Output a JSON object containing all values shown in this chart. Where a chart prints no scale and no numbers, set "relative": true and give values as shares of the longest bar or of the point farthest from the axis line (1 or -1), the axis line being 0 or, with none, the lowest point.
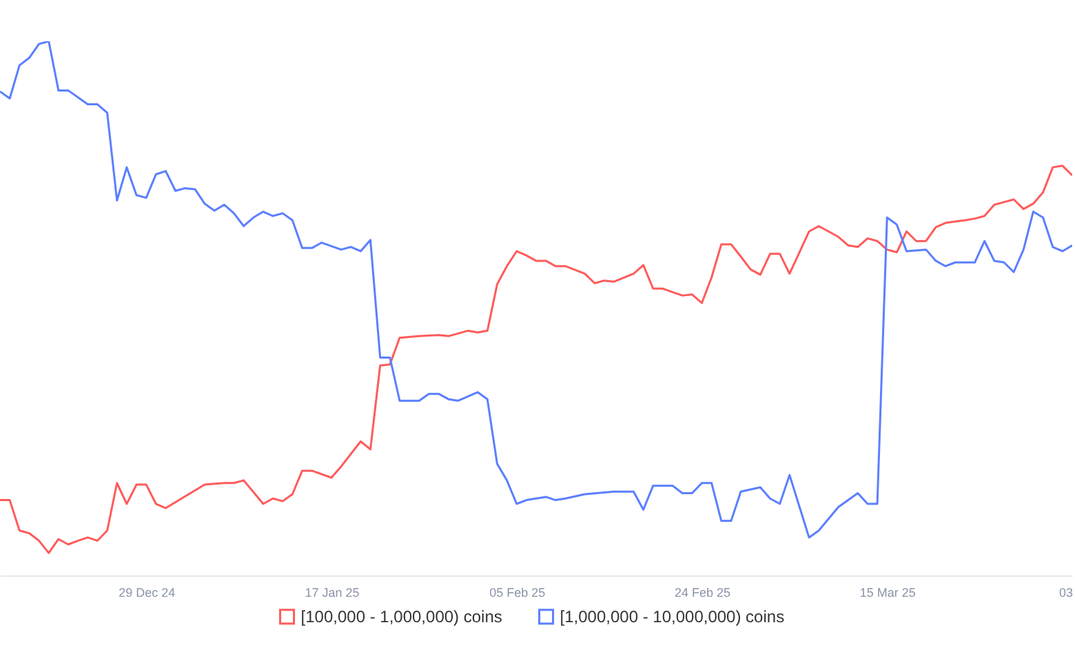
{
  "chart_data": {
    "type": "line",
    "relative": true,
    "legend": "bottom",
    "xlim": [
      "2024-12-14",
      "2025-04-03"
    ],
    "xticks": [
      {
        "value": "2024-12-29",
        "label": "29 Dec 24"
      },
      {
        "value": "2025-01-17",
        "label": "17 Jan 25"
      },
      {
        "value": "2025-02-05",
        "label": "05 Feb 25"
      },
      {
        "value": "2025-02-24",
        "label": "24 Feb 25"
      },
      {
        "value": "2025-03-15",
        "label": "15 Mar 25"
      },
      {
        "value": "2025-04-03",
        "label": "03"
      }
    ],
    "series": [
      {
        "name": "[100,000  - 1,000,000) coins",
        "color": "#ff5b5b",
        "x": [
          "2024-12-14",
          "2024-12-15",
          "2024-12-16",
          "2024-12-17",
          "2024-12-18",
          "2024-12-19",
          "2024-12-20",
          "2024-12-21",
          "2024-12-22",
          "2024-12-23",
          "2024-12-24",
          "2024-12-25",
          "2024-12-26",
          "2024-12-27",
          "2024-12-28",
          "2024-12-29",
          "2024-12-30",
          "2024-12-31",
          "2025-01-04",
          "2025-01-06",
          "2025-01-07",
          "2025-01-08",
          "2025-01-10",
          "2025-01-11",
          "2025-01-12",
          "2025-01-13",
          "2025-01-14",
          "2025-01-15",
          "2025-01-17",
          "2025-01-18",
          "2025-01-20",
          "2025-01-21",
          "2025-01-22",
          "2025-01-23",
          "2025-01-24",
          "2025-01-26",
          "2025-01-28",
          "2025-01-29",
          "2025-01-31",
          "2025-02-01",
          "2025-02-02",
          "2025-02-03",
          "2025-02-04",
          "2025-02-05",
          "2025-02-06",
          "2025-02-07",
          "2025-02-08",
          "2025-02-09",
          "2025-02-10",
          "2025-02-12",
          "2025-02-13",
          "2025-02-14",
          "2025-02-15",
          "2025-02-17",
          "2025-02-18",
          "2025-02-19",
          "2025-02-20",
          "2025-02-22",
          "2025-02-23",
          "2025-02-24",
          "2025-02-25",
          "2025-02-26",
          "2025-02-27",
          "2025-02-28",
          "2025-03-01",
          "2025-03-02",
          "2025-03-03",
          "2025-03-04",
          "2025-03-05",
          "2025-03-07",
          "2025-03-08",
          "2025-03-10",
          "2025-03-11",
          "2025-03-12",
          "2025-03-13",
          "2025-03-14",
          "2025-03-15",
          "2025-03-16",
          "2025-03-17",
          "2025-03-18",
          "2025-03-19",
          "2025-03-20",
          "2025-03-21",
          "2025-03-23",
          "2025-03-24",
          "2025-03-25",
          "2025-03-26",
          "2025-03-27",
          "2025-03-28",
          "2025-03-29",
          "2025-03-30",
          "2025-03-31",
          "2025-04-01",
          "2025-04-02",
          "2025-04-03"
        ],
        "values": [
          0.141,
          0.141,
          0.084,
          0.079,
          0.065,
          0.042,
          0.068,
          0.058,
          0.065,
          0.071,
          0.065,
          0.084,
          0.173,
          0.134,
          0.17,
          0.17,
          0.134,
          0.126,
          0.17,
          0.173,
          0.173,
          0.178,
          0.134,
          0.144,
          0.139,
          0.152,
          0.196,
          0.196,
          0.183,
          0.204,
          0.251,
          0.236,
          0.393,
          0.395,
          0.445,
          0.448,
          0.45,
          0.448,
          0.458,
          0.455,
          0.458,
          0.545,
          0.579,
          0.607,
          0.599,
          0.589,
          0.589,
          0.579,
          0.579,
          0.565,
          0.547,
          0.552,
          0.55,
          0.565,
          0.581,
          0.537,
          0.537,
          0.524,
          0.526,
          0.51,
          0.558,
          0.62,
          0.62,
          0.597,
          0.573,
          0.563,
          0.602,
          0.602,
          0.565,
          0.644,
          0.654,
          0.634,
          0.618,
          0.615,
          0.631,
          0.626,
          0.61,
          0.605,
          0.644,
          0.626,
          0.626,
          0.652,
          0.66,
          0.665,
          0.668,
          0.673,
          0.694,
          0.699,
          0.704,
          0.686,
          0.696,
          0.717,
          0.764,
          0.767,
          0.749
        ]
      },
      {
        "name": "[1,000,000 - 10,000,000) coins",
        "color": "#5b7fff",
        "x": [
          "2024-12-14",
          "2024-12-15",
          "2024-12-16",
          "2024-12-17",
          "2024-12-18",
          "2024-12-19",
          "2024-12-20",
          "2024-12-21",
          "2024-12-23",
          "2024-12-24",
          "2024-12-25",
          "2024-12-26",
          "2024-12-27",
          "2024-12-28",
          "2024-12-29",
          "2024-12-30",
          "2024-12-31",
          "2025-01-01",
          "2025-01-02",
          "2025-01-03",
          "2025-01-04",
          "2025-01-05",
          "2025-01-06",
          "2025-01-07",
          "2025-01-08",
          "2025-01-09",
          "2025-01-10",
          "2025-01-11",
          "2025-01-12",
          "2025-01-13",
          "2025-01-14",
          "2025-01-15",
          "2025-01-16",
          "2025-01-18",
          "2025-01-19",
          "2025-01-20",
          "2025-01-21",
          "2025-01-22",
          "2025-01-23",
          "2025-01-24",
          "2025-01-26",
          "2025-01-27",
          "2025-01-28",
          "2025-01-29",
          "2025-01-30",
          "2025-02-01",
          "2025-02-02",
          "2025-02-03",
          "2025-02-04",
          "2025-02-05",
          "2025-02-06",
          "2025-02-08",
          "2025-02-09",
          "2025-02-10",
          "2025-02-12",
          "2025-02-15",
          "2025-02-17",
          "2025-02-18",
          "2025-02-19",
          "2025-02-21",
          "2025-02-22",
          "2025-02-23",
          "2025-02-24",
          "2025-02-25",
          "2025-02-26",
          "2025-02-27",
          "2025-02-28",
          "2025-03-02",
          "2025-03-03",
          "2025-03-04",
          "2025-03-05",
          "2025-03-07",
          "2025-03-08",
          "2025-03-10",
          "2025-03-12",
          "2025-03-13",
          "2025-03-14",
          "2025-03-15",
          "2025-03-16",
          "2025-03-17",
          "2025-03-19",
          "2025-03-20",
          "2025-03-21",
          "2025-03-22",
          "2025-03-24",
          "2025-03-25",
          "2025-03-26",
          "2025-03-27",
          "2025-03-28",
          "2025-03-29",
          "2025-03-30",
          "2025-03-31",
          "2025-04-01",
          "2025-04-02",
          "2025-04-03"
        ],
        "values": [
          0.906,
          0.893,
          0.955,
          0.969,
          0.995,
          1.0,
          0.908,
          0.908,
          0.882,
          0.882,
          0.866,
          0.702,
          0.764,
          0.712,
          0.707,
          0.751,
          0.757,
          0.72,
          0.725,
          0.723,
          0.696,
          0.683,
          0.694,
          0.678,
          0.654,
          0.67,
          0.681,
          0.673,
          0.678,
          0.665,
          0.613,
          0.613,
          0.623,
          0.61,
          0.615,
          0.607,
          0.628,
          0.408,
          0.408,
          0.327,
          0.327,
          0.34,
          0.34,
          0.33,
          0.327,
          0.343,
          0.33,
          0.209,
          0.178,
          0.134,
          0.141,
          0.147,
          0.141,
          0.144,
          0.152,
          0.157,
          0.157,
          0.123,
          0.168,
          0.168,
          0.154,
          0.154,
          0.173,
          0.173,
          0.102,
          0.102,
          0.157,
          0.165,
          0.144,
          0.134,
          0.188,
          0.071,
          0.084,
          0.128,
          0.154,
          0.134,
          0.134,
          0.67,
          0.657,
          0.607,
          0.61,
          0.589,
          0.579,
          0.586,
          0.586,
          0.626,
          0.589,
          0.586,
          0.568,
          0.61,
          0.681,
          0.67,
          0.615,
          0.607,
          0.618
        ]
      }
    ]
  }
}
